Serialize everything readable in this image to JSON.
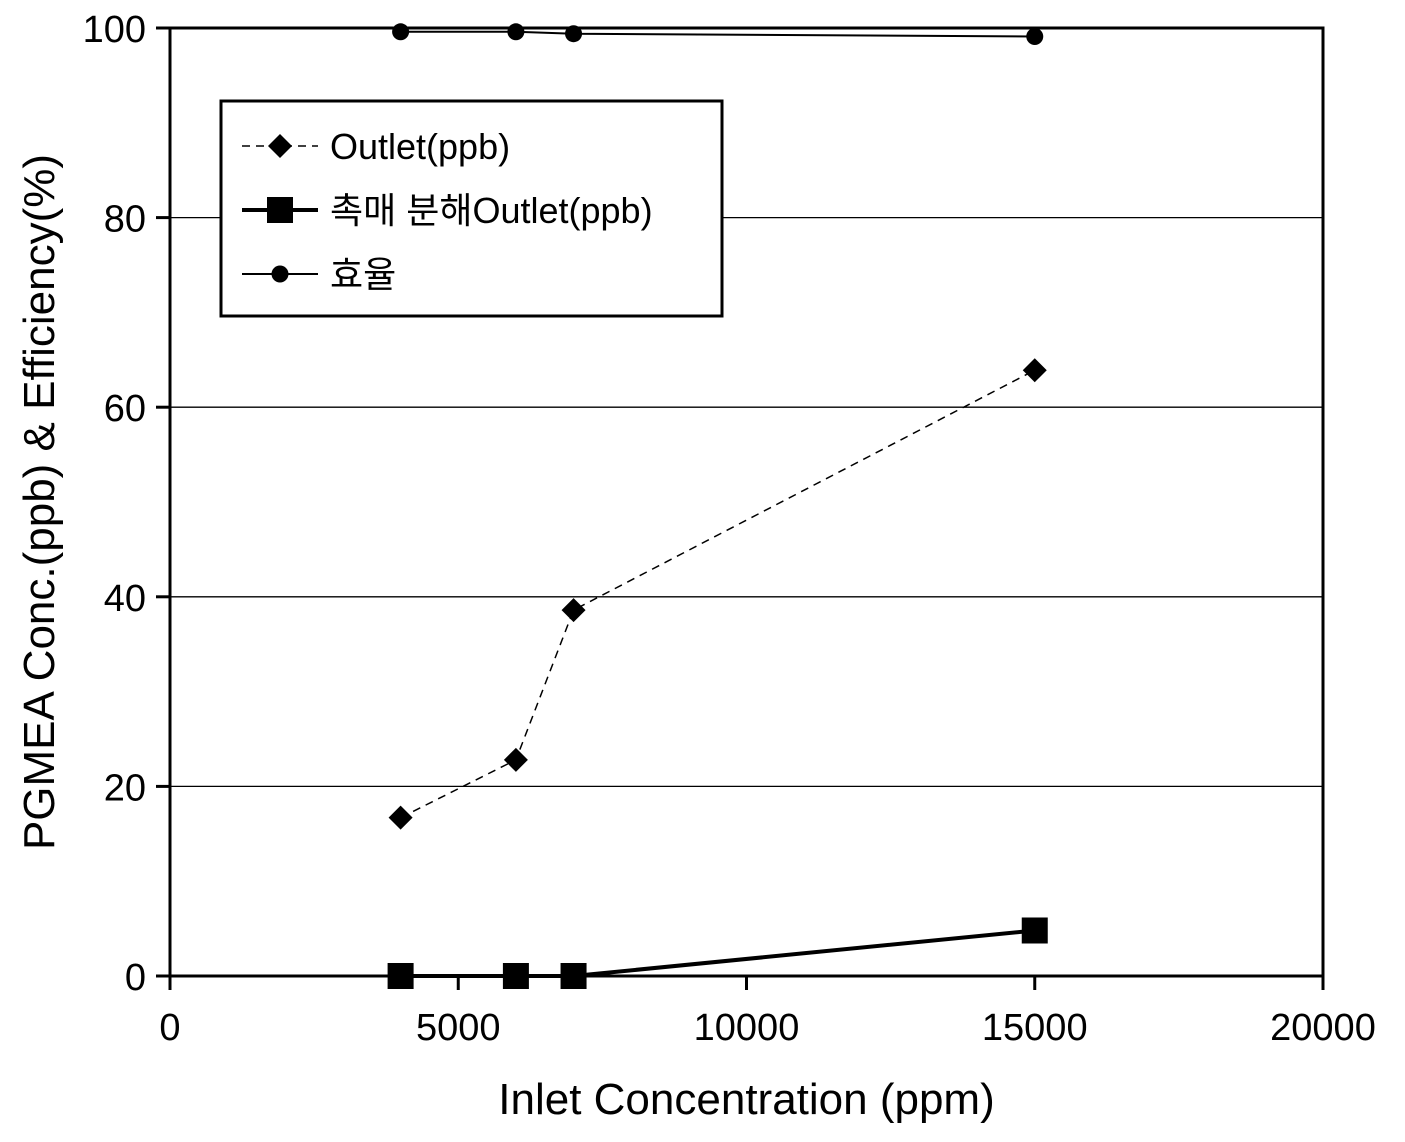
{
  "chart_data": {
    "type": "line",
    "xlabel": "Inlet Concentration (ppm)",
    "ylabel": "PGMEA Conc.(ppb) & Efficiency(%)",
    "xlim": [
      0,
      20000
    ],
    "ylim": [
      0,
      100
    ],
    "xticks": [
      0,
      5000,
      10000,
      15000,
      20000
    ],
    "yticks": [
      0,
      20,
      40,
      60,
      80,
      100
    ],
    "grid": "horizontal",
    "legend_position": "top-left",
    "series": [
      {
        "name": "Outlet(ppb)",
        "marker": "diamond",
        "line": "dashed",
        "x": [
          4000,
          6000,
          7000,
          15000
        ],
        "y": [
          16.7,
          22.8,
          38.6,
          63.9
        ]
      },
      {
        "name": "촉매 분해Outlet(ppb)",
        "marker": "square",
        "line": "solid-thick",
        "x": [
          4000,
          6000,
          7000,
          15000
        ],
        "y": [
          0,
          0,
          0,
          4.8
        ]
      },
      {
        "name": "효율",
        "marker": "circle",
        "line": "solid",
        "x": [
          4000,
          6000,
          7000,
          15000
        ],
        "y": [
          99.6,
          99.6,
          99.4,
          99.1
        ]
      }
    ]
  }
}
